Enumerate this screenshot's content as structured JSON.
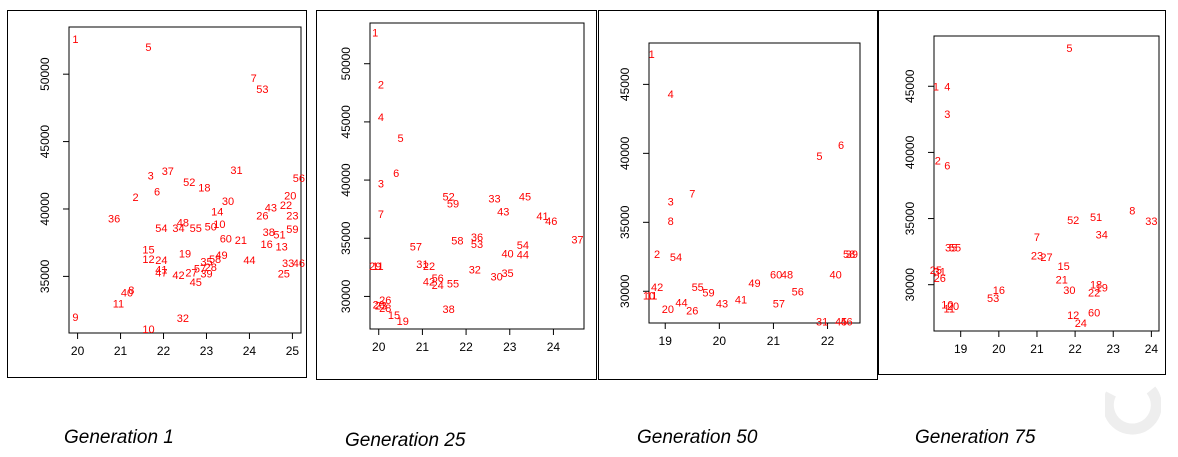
{
  "chart_data": [
    {
      "type": "scatter",
      "title": "",
      "caption": "Generation 1",
      "xlabel": "",
      "ylabel": "",
      "xlim": [
        19.8,
        25.2
      ],
      "ylim": [
        30800,
        53500
      ],
      "xticks": [
        20,
        21,
        22,
        23,
        24,
        25
      ],
      "yticks": [
        35000,
        40000,
        45000,
        50000
      ],
      "grid": false,
      "point_color": "#ff0000",
      "points": [
        {
          "label": "1",
          "x": 19.95,
          "y": 52600
        },
        {
          "label": "5",
          "x": 21.65,
          "y": 52000
        },
        {
          "label": "7",
          "x": 24.1,
          "y": 49700
        },
        {
          "label": "53",
          "x": 24.3,
          "y": 48900
        },
        {
          "label": "31",
          "x": 23.7,
          "y": 42900
        },
        {
          "label": "56",
          "x": 25.15,
          "y": 42300
        },
        {
          "label": "37",
          "x": 22.1,
          "y": 42800
        },
        {
          "label": "3",
          "x": 21.7,
          "y": 42500
        },
        {
          "label": "52",
          "x": 22.6,
          "y": 42000
        },
        {
          "label": "18",
          "x": 22.95,
          "y": 41600
        },
        {
          "label": "6",
          "x": 21.85,
          "y": 41300
        },
        {
          "label": "2",
          "x": 21.35,
          "y": 40900
        },
        {
          "label": "20",
          "x": 24.95,
          "y": 41000
        },
        {
          "label": "30",
          "x": 23.5,
          "y": 40600
        },
        {
          "label": "43",
          "x": 24.5,
          "y": 40100
        },
        {
          "label": "22",
          "x": 24.85,
          "y": 40300
        },
        {
          "label": "14",
          "x": 23.25,
          "y": 39800
        },
        {
          "label": "26",
          "x": 24.3,
          "y": 39500
        },
        {
          "label": "23",
          "x": 25.0,
          "y": 39500
        },
        {
          "label": "36",
          "x": 20.85,
          "y": 39300
        },
        {
          "label": "10",
          "x": 23.3,
          "y": 38900
        },
        {
          "label": "54",
          "x": 21.95,
          "y": 38600
        },
        {
          "label": "34",
          "x": 22.35,
          "y": 38600
        },
        {
          "label": "48",
          "x": 22.45,
          "y": 39000
        },
        {
          "label": "55",
          "x": 22.75,
          "y": 38600
        },
        {
          "label": "50",
          "x": 23.1,
          "y": 38700
        },
        {
          "label": "59",
          "x": 25.0,
          "y": 38500
        },
        {
          "label": "38",
          "x": 24.45,
          "y": 38300
        },
        {
          "label": "51",
          "x": 24.7,
          "y": 38100
        },
        {
          "label": "60",
          "x": 23.45,
          "y": 37800
        },
        {
          "label": "21",
          "x": 23.8,
          "y": 37700
        },
        {
          "label": "16",
          "x": 24.4,
          "y": 37400
        },
        {
          "label": "13",
          "x": 24.75,
          "y": 37200
        },
        {
          "label": "15",
          "x": 21.65,
          "y": 37000
        },
        {
          "label": "19",
          "x": 22.5,
          "y": 36700
        },
        {
          "label": "49",
          "x": 23.35,
          "y": 36600
        },
        {
          "label": "12",
          "x": 21.65,
          "y": 36300
        },
        {
          "label": "24",
          "x": 21.95,
          "y": 36200
        },
        {
          "label": "35",
          "x": 23.0,
          "y": 36100
        },
        {
          "label": "58",
          "x": 23.2,
          "y": 36300
        },
        {
          "label": "44",
          "x": 24.0,
          "y": 36200
        },
        {
          "label": "33",
          "x": 24.9,
          "y": 36000
        },
        {
          "label": "46",
          "x": 25.15,
          "y": 36000
        },
        {
          "label": "28",
          "x": 23.1,
          "y": 35700
        },
        {
          "label": "41",
          "x": 21.95,
          "y": 35500
        },
        {
          "label": "47",
          "x": 21.95,
          "y": 35300
        },
        {
          "label": "42",
          "x": 22.35,
          "y": 35100
        },
        {
          "label": "27",
          "x": 22.65,
          "y": 35300
        },
        {
          "label": "57",
          "x": 22.85,
          "y": 35600
        },
        {
          "label": "39",
          "x": 23.0,
          "y": 35200
        },
        {
          "label": "25",
          "x": 24.8,
          "y": 35200
        },
        {
          "label": "45",
          "x": 22.75,
          "y": 34600
        },
        {
          "label": "8",
          "x": 21.25,
          "y": 34000
        },
        {
          "label": "40",
          "x": 21.15,
          "y": 33800
        },
        {
          "label": "11",
          "x": 20.95,
          "y": 33000
        },
        {
          "label": "9",
          "x": 19.95,
          "y": 32000
        },
        {
          "label": "32",
          "x": 22.45,
          "y": 31900
        },
        {
          "label": "10",
          "x": 21.65,
          "y": 31100
        }
      ]
    },
    {
      "type": "scatter",
      "title": "",
      "caption": "Generation 25",
      "xlabel": "",
      "ylabel": "",
      "xlim": [
        19.8,
        24.7
      ],
      "ylim": [
        27200,
        53500
      ],
      "xticks": [
        20,
        21,
        22,
        23,
        24
      ],
      "yticks": [
        30000,
        35000,
        40000,
        45000,
        50000
      ],
      "grid": false,
      "point_color": "#ff0000",
      "points": [
        {
          "label": "1",
          "x": 19.92,
          "y": 52700
        },
        {
          "label": "2",
          "x": 20.05,
          "y": 48200
        },
        {
          "label": "4",
          "x": 20.05,
          "y": 45400
        },
        {
          "label": "5",
          "x": 20.5,
          "y": 43600
        },
        {
          "label": "6",
          "x": 20.4,
          "y": 40600
        },
        {
          "label": "3",
          "x": 20.05,
          "y": 39700
        },
        {
          "label": "7",
          "x": 20.05,
          "y": 37100
        },
        {
          "label": "52",
          "x": 21.6,
          "y": 38600
        },
        {
          "label": "33",
          "x": 22.65,
          "y": 38400
        },
        {
          "label": "45",
          "x": 23.35,
          "y": 38600
        },
        {
          "label": "59",
          "x": 21.7,
          "y": 38000
        },
        {
          "label": "43",
          "x": 22.85,
          "y": 37300
        },
        {
          "label": "41",
          "x": 23.75,
          "y": 36900
        },
        {
          "label": "46",
          "x": 23.95,
          "y": 36500
        },
        {
          "label": "37",
          "x": 24.55,
          "y": 34900
        },
        {
          "label": "58",
          "x": 21.8,
          "y": 34800
        },
        {
          "label": "36",
          "x": 22.25,
          "y": 35100
        },
        {
          "label": "53",
          "x": 22.25,
          "y": 34500
        },
        {
          "label": "54",
          "x": 23.3,
          "y": 34400
        },
        {
          "label": "57",
          "x": 20.85,
          "y": 34300
        },
        {
          "label": "40",
          "x": 22.95,
          "y": 33700
        },
        {
          "label": "44",
          "x": 23.3,
          "y": 33600
        },
        {
          "label": "31",
          "x": 21.0,
          "y": 32800
        },
        {
          "label": "22",
          "x": 21.15,
          "y": 32600
        },
        {
          "label": "32",
          "x": 22.2,
          "y": 32300
        },
        {
          "label": "35",
          "x": 22.95,
          "y": 32000
        },
        {
          "label": "30",
          "x": 22.7,
          "y": 31700
        },
        {
          "label": "29",
          "x": 19.92,
          "y": 32600
        },
        {
          "label": "11",
          "x": 19.98,
          "y": 32600
        },
        {
          "label": "56",
          "x": 21.35,
          "y": 31600
        },
        {
          "label": "42",
          "x": 21.15,
          "y": 31300
        },
        {
          "label": "24",
          "x": 21.35,
          "y": 31000
        },
        {
          "label": "55",
          "x": 21.7,
          "y": 31100
        },
        {
          "label": "26",
          "x": 20.15,
          "y": 29700
        },
        {
          "label": "20",
          "x": 20.0,
          "y": 29300
        },
        {
          "label": "23",
          "x": 20.05,
          "y": 29200
        },
        {
          "label": "28",
          "x": 20.15,
          "y": 29000
        },
        {
          "label": "38",
          "x": 21.6,
          "y": 28900
        },
        {
          "label": "15",
          "x": 20.35,
          "y": 28400
        },
        {
          "label": "19",
          "x": 20.55,
          "y": 27900
        }
      ]
    },
    {
      "type": "scatter",
      "title": "",
      "caption": "Generation 50",
      "xlabel": "",
      "ylabel": "",
      "xlim": [
        18.7,
        22.6
      ],
      "ylim": [
        27700,
        48000
      ],
      "xticks": [
        19,
        20,
        21,
        22
      ],
      "yticks": [
        30000,
        35000,
        40000,
        45000
      ],
      "grid": false,
      "point_color": "#ff0000",
      "points": [
        {
          "label": "1",
          "x": 18.75,
          "y": 47200
        },
        {
          "label": "4",
          "x": 19.1,
          "y": 44300
        },
        {
          "label": "7",
          "x": 19.5,
          "y": 37100
        },
        {
          "label": "3",
          "x": 19.1,
          "y": 36500
        },
        {
          "label": "8",
          "x": 19.1,
          "y": 35100
        },
        {
          "label": "6",
          "x": 22.25,
          "y": 40600
        },
        {
          "label": "5",
          "x": 21.85,
          "y": 39800
        },
        {
          "label": "2",
          "x": 18.85,
          "y": 32700
        },
        {
          "label": "54",
          "x": 19.2,
          "y": 32500
        },
        {
          "label": "58",
          "x": 22.4,
          "y": 32700
        },
        {
          "label": "39",
          "x": 22.45,
          "y": 32700
        },
        {
          "label": "40",
          "x": 22.15,
          "y": 31200
        },
        {
          "label": "60",
          "x": 21.05,
          "y": 31200
        },
        {
          "label": "48",
          "x": 21.25,
          "y": 31200
        },
        {
          "label": "49",
          "x": 20.65,
          "y": 30600
        },
        {
          "label": "56",
          "x": 21.45,
          "y": 30000
        },
        {
          "label": "55",
          "x": 19.6,
          "y": 30300
        },
        {
          "label": "59",
          "x": 19.8,
          "y": 29900
        },
        {
          "label": "42",
          "x": 18.85,
          "y": 30300
        },
        {
          "label": "10",
          "x": 18.7,
          "y": 29700
        },
        {
          "label": "11",
          "x": 18.75,
          "y": 29700
        },
        {
          "label": "41",
          "x": 20.4,
          "y": 29400
        },
        {
          "label": "43",
          "x": 20.05,
          "y": 29100
        },
        {
          "label": "44",
          "x": 19.3,
          "y": 29200
        },
        {
          "label": "57",
          "x": 21.1,
          "y": 29100
        },
        {
          "label": "20",
          "x": 19.05,
          "y": 28700
        },
        {
          "label": "26",
          "x": 19.5,
          "y": 28600
        },
        {
          "label": "31",
          "x": 21.9,
          "y": 27800
        },
        {
          "label": "45",
          "x": 22.25,
          "y": 27800
        },
        {
          "label": "46",
          "x": 22.35,
          "y": 27800
        }
      ]
    },
    {
      "type": "scatter",
      "title": "",
      "caption": "Generation 75",
      "xlabel": "",
      "ylabel": "",
      "xlim": [
        18.3,
        24.2
      ],
      "ylim": [
        26500,
        48800
      ],
      "xticks": [
        19,
        20,
        21,
        22,
        23,
        24
      ],
      "yticks": [
        30000,
        35000,
        40000,
        45000
      ],
      "grid": false,
      "point_color": "#ff0000",
      "points": [
        {
          "label": "5",
          "x": 21.85,
          "y": 47900
        },
        {
          "label": "1",
          "x": 18.35,
          "y": 45000
        },
        {
          "label": "4",
          "x": 18.65,
          "y": 45000
        },
        {
          "label": "3",
          "x": 18.65,
          "y": 42900
        },
        {
          "label": "2",
          "x": 18.4,
          "y": 39400
        },
        {
          "label": "6",
          "x": 18.65,
          "y": 39000
        },
        {
          "label": "8",
          "x": 23.5,
          "y": 35600
        },
        {
          "label": "33",
          "x": 24.0,
          "y": 34800
        },
        {
          "label": "52",
          "x": 21.95,
          "y": 34900
        },
        {
          "label": "51",
          "x": 22.55,
          "y": 35100
        },
        {
          "label": "34",
          "x": 22.7,
          "y": 33800
        },
        {
          "label": "7",
          "x": 21.0,
          "y": 33600
        },
        {
          "label": "35",
          "x": 18.75,
          "y": 32800
        },
        {
          "label": "55",
          "x": 18.85,
          "y": 32800
        },
        {
          "label": "23",
          "x": 21.0,
          "y": 32200
        },
        {
          "label": "27",
          "x": 21.25,
          "y": 32100
        },
        {
          "label": "15",
          "x": 21.7,
          "y": 31400
        },
        {
          "label": "21",
          "x": 21.65,
          "y": 30400
        },
        {
          "label": "30",
          "x": 21.85,
          "y": 29600
        },
        {
          "label": "18",
          "x": 22.55,
          "y": 30000
        },
        {
          "label": "19",
          "x": 22.7,
          "y": 29800
        },
        {
          "label": "22",
          "x": 22.5,
          "y": 29400
        },
        {
          "label": "25",
          "x": 18.35,
          "y": 31100
        },
        {
          "label": "31",
          "x": 18.45,
          "y": 31000
        },
        {
          "label": "26",
          "x": 18.45,
          "y": 30500
        },
        {
          "label": "16",
          "x": 20.0,
          "y": 29600
        },
        {
          "label": "53",
          "x": 19.85,
          "y": 29000
        },
        {
          "label": "10",
          "x": 18.65,
          "y": 28500
        },
        {
          "label": "20",
          "x": 18.8,
          "y": 28400
        },
        {
          "label": "11",
          "x": 18.7,
          "y": 28200
        },
        {
          "label": "60",
          "x": 22.5,
          "y": 27900
        },
        {
          "label": "12",
          "x": 21.95,
          "y": 27700
        },
        {
          "label": "24",
          "x": 22.15,
          "y": 27100
        }
      ]
    }
  ]
}
